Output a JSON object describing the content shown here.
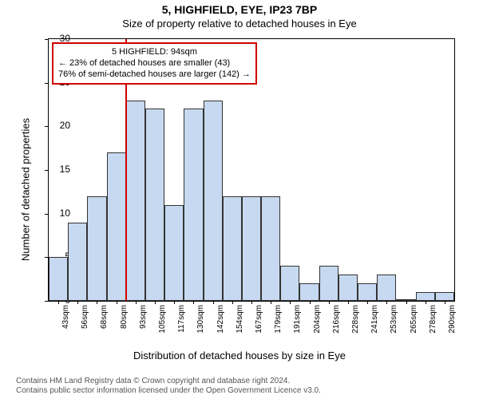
{
  "title_top": "5, HIGHFIELD, EYE, IP23 7BP",
  "title_sub": "Size of property relative to detached houses in Eye",
  "ylabel": "Number of detached properties",
  "xlabel": "Distribution of detached houses by size in Eye",
  "chart": {
    "type": "histogram",
    "categories": [
      "43sqm",
      "56sqm",
      "68sqm",
      "80sqm",
      "93sqm",
      "105sqm",
      "117sqm",
      "130sqm",
      "142sqm",
      "154sqm",
      "167sqm",
      "179sqm",
      "191sqm",
      "204sqm",
      "216sqm",
      "228sqm",
      "241sqm",
      "253sqm",
      "265sqm",
      "278sqm",
      "290sqm"
    ],
    "values": [
      5,
      9,
      12,
      17,
      23,
      22,
      11,
      22,
      23,
      12,
      12,
      12,
      4,
      2,
      4,
      3,
      2,
      3,
      0,
      1,
      1
    ],
    "bar_fill": "#c6d9f0",
    "bar_stroke": "#333333",
    "background_color": "#ffffff",
    "ymin": 0,
    "ymax": 30,
    "ytick_step": 5,
    "plot_border_color": "#000000",
    "reference_line": {
      "index_between": 3,
      "color": "#d00000",
      "width": 2
    },
    "annotation": {
      "border_color": "#d00000",
      "lines": [
        "5 HIGHFIELD: 94sqm",
        "← 23% of detached houses are smaller (43)",
        "76% of semi-detached houses are larger (142) →"
      ]
    }
  },
  "footer": {
    "line1": "Contains HM Land Registry data © Crown copyright and database right 2024.",
    "line2": "Contains public sector information licensed under the Open Government Licence v3.0."
  }
}
